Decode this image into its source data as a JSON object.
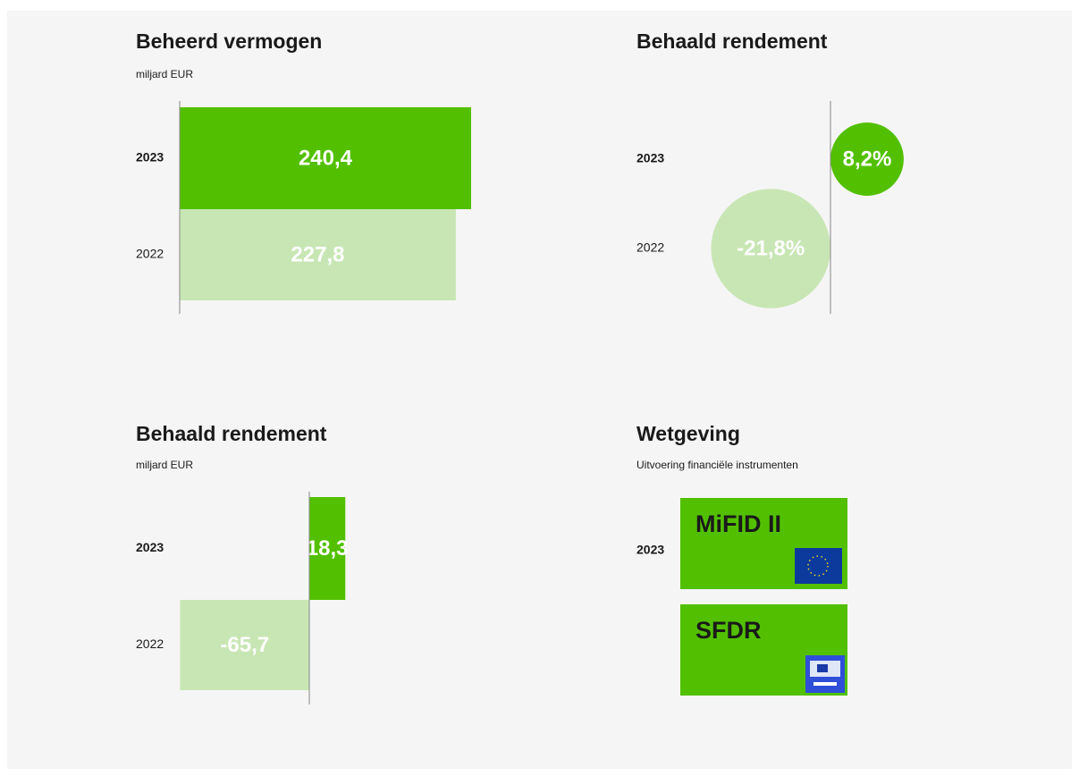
{
  "chart_data": [
    {
      "type": "hbar",
      "title": "Beheerd vermogen",
      "subtitle": "miljard EUR",
      "categories": [
        "2023",
        "2022"
      ],
      "values": [
        240.4,
        227.8
      ],
      "value_labels": [
        "240,4",
        "227,8"
      ],
      "colors": [
        "#52c000",
        "#c8e6b4"
      ],
      "xlim": [
        0,
        250
      ]
    },
    {
      "type": "bubble",
      "title": "Behaald rendement",
      "categories": [
        "2023",
        "2022"
      ],
      "values": [
        8.2,
        -21.8
      ],
      "value_labels": [
        "8,2%",
        "-21,8%"
      ],
      "colors": [
        "#52c000",
        "#c8e6b4"
      ]
    },
    {
      "type": "hbar",
      "title": "Behaald rendement",
      "subtitle": "miljard EUR",
      "categories": [
        "2023",
        "2022"
      ],
      "values": [
        18.3,
        -65.7
      ],
      "value_labels": [
        "18,3",
        "-65,7"
      ],
      "colors": [
        "#52c000",
        "#c8e6b4"
      ],
      "xlim": [
        -70,
        30
      ]
    }
  ],
  "wetgeving": {
    "title": "Wetgeving",
    "subtitle": "Uitvoering financiële instrumenten",
    "year": "2023",
    "items": [
      "MiFID II",
      "SFDR"
    ]
  }
}
